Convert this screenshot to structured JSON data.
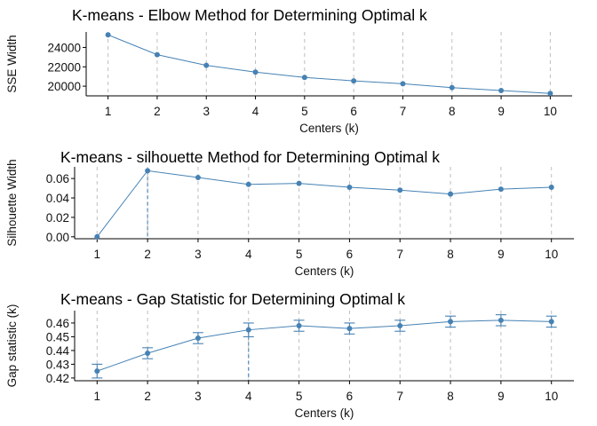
{
  "colors": {
    "series": "#4682B4",
    "vline": "#4682B4",
    "grid": "#BEBEBE",
    "axis": "#000000"
  },
  "chart_data": [
    {
      "type": "line",
      "title": "K-means - Elbow Method for Determining Optimal k",
      "xlabel": "Centers (k)",
      "ylabel": "SSE Width",
      "x": [
        1,
        2,
        3,
        4,
        5,
        6,
        7,
        8,
        9,
        10
      ],
      "x_tick_labels": [
        "1",
        "2",
        "3",
        "4",
        "5",
        "6",
        "7",
        "8",
        "9",
        "10"
      ],
      "y": [
        25300,
        23250,
        22150,
        21450,
        20900,
        20550,
        20250,
        19850,
        19550,
        19250
      ],
      "y_ticks": [
        20000,
        22000,
        24000
      ],
      "y_tick_labels": [
        "20000",
        "22000",
        "24000"
      ],
      "ylim": [
        19000,
        25600
      ],
      "grid": "vertical dashed at each k",
      "optimal_k": null
    },
    {
      "type": "line",
      "title": "K-means - silhouette Method for Determining Optimal k",
      "xlabel": "Centers (k)",
      "ylabel": "Silhouette Width",
      "x": [
        1,
        2,
        3,
        4,
        5,
        6,
        7,
        8,
        9,
        10
      ],
      "x_tick_labels": [
        "1",
        "2",
        "3",
        "4",
        "5",
        "6",
        "7",
        "8",
        "9",
        "10"
      ],
      "y": [
        0.0,
        0.068,
        0.061,
        0.054,
        0.055,
        0.051,
        0.048,
        0.044,
        0.049,
        0.051
      ],
      "y_ticks": [
        0.0,
        0.02,
        0.04,
        0.06
      ],
      "y_tick_labels": [
        "0.00",
        "0.02",
        "0.04",
        "0.06"
      ],
      "ylim": [
        -0.002,
        0.072
      ],
      "grid": "vertical dashed at each k",
      "optimal_k": 2
    },
    {
      "type": "line",
      "title": "K-means - Gap Statistic for Determining Optimal k",
      "xlabel": "Centers (k)",
      "ylabel": "Gap statistic (k)",
      "x": [
        1,
        2,
        3,
        4,
        5,
        6,
        7,
        8,
        9,
        10
      ],
      "x_tick_labels": [
        "1",
        "2",
        "3",
        "4",
        "5",
        "6",
        "7",
        "8",
        "9",
        "10"
      ],
      "y": [
        0.425,
        0.438,
        0.449,
        0.455,
        0.458,
        0.456,
        0.458,
        0.461,
        0.462,
        0.461
      ],
      "err": [
        0.005,
        0.004,
        0.004,
        0.005,
        0.004,
        0.004,
        0.004,
        0.004,
        0.004,
        0.004
      ],
      "y_ticks": [
        0.42,
        0.43,
        0.44,
        0.45,
        0.46
      ],
      "y_tick_labels": [
        "0.42",
        "0.43",
        "0.44",
        "0.45",
        "0.46"
      ],
      "ylim": [
        0.418,
        0.469
      ],
      "grid": "vertical dashed at each k",
      "optimal_k": 4
    }
  ]
}
